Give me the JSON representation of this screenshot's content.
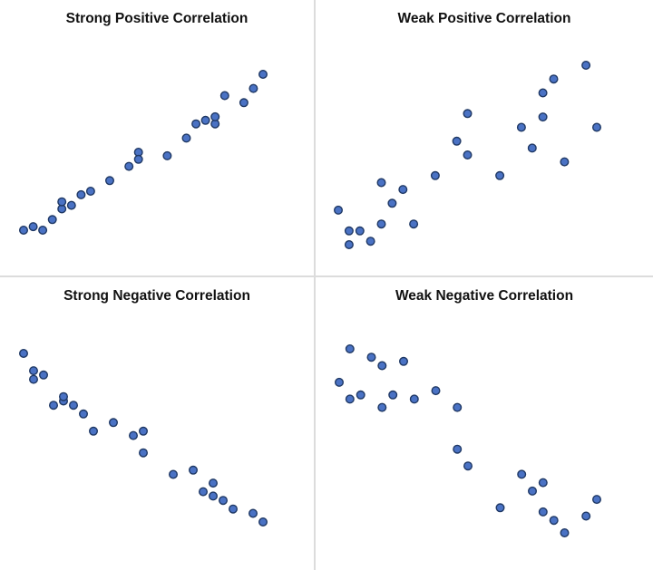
{
  "point_color": "#4a72c4",
  "point_edge": "#1f3864",
  "chart_data": [
    {
      "type": "scatter",
      "title": "Strong Positive Correlation",
      "x": [
        1,
        2,
        3,
        4,
        5,
        5,
        6,
        7,
        8,
        10,
        12,
        13,
        13,
        16,
        18,
        19,
        20,
        21,
        21,
        22,
        24,
        25,
        26
      ],
      "y": [
        2,
        2.5,
        2,
        3.5,
        5,
        6,
        5.5,
        7,
        7.5,
        9,
        11,
        13,
        12,
        12.5,
        15,
        17,
        17.5,
        17,
        18,
        21,
        20,
        22,
        24
      ]
    },
    {
      "type": "scatter",
      "title": "Weak Positive Correlation",
      "x": [
        1,
        2,
        2,
        3,
        4,
        5,
        5,
        6,
        7,
        8,
        10,
        12,
        13,
        13,
        16,
        18,
        19,
        20,
        20,
        21,
        22,
        24,
        25
      ],
      "y": [
        7,
        2,
        4,
        4,
        2.5,
        5,
        11,
        8,
        10,
        5,
        12,
        17,
        21,
        15,
        12,
        19,
        16,
        24,
        20.5,
        26,
        14,
        28,
        19
      ]
    },
    {
      "type": "scatter",
      "title": "Strong Negative Correlation",
      "x": [
        1,
        2,
        2,
        3,
        4,
        5,
        5,
        6,
        7,
        8,
        10,
        12,
        13,
        13,
        16,
        18,
        19,
        20,
        20,
        21,
        22,
        24,
        25
      ],
      "y": [
        24,
        22,
        21,
        21.5,
        18,
        18.5,
        19,
        18,
        17,
        15,
        16,
        14.5,
        15,
        12.5,
        10,
        10.5,
        8,
        9,
        7.5,
        7,
        6,
        5.5,
        4.5
      ]
    },
    {
      "type": "scatter",
      "title": "Weak Negative Correlation",
      "x": [
        1,
        2,
        2,
        3,
        4,
        5,
        5,
        6,
        7,
        8,
        10,
        12,
        12,
        13,
        16,
        18,
        19,
        20,
        20,
        21,
        22,
        24,
        25
      ],
      "y": [
        23,
        27,
        21,
        21.5,
        26,
        25,
        20,
        21.5,
        25.5,
        21,
        22,
        15,
        20,
        13,
        8,
        12,
        10,
        7.5,
        11,
        6.5,
        5,
        7,
        9
      ]
    }
  ]
}
